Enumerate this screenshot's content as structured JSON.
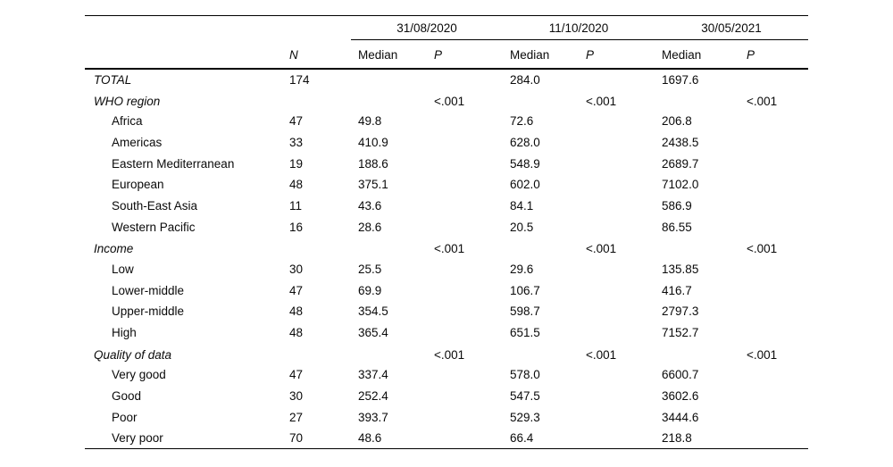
{
  "table": {
    "dates": [
      "31/08/2020",
      "11/10/2020",
      "30/05/2021"
    ],
    "headers": {
      "n": "N",
      "median": "Median",
      "p": "P"
    },
    "rows": [
      {
        "label": "TOTAL",
        "type": "section",
        "cells": [
          "174",
          "",
          "",
          "284.0",
          "",
          "1697.6",
          ""
        ]
      },
      {
        "label": "WHO region",
        "type": "section",
        "cells": [
          "",
          "",
          "<.001",
          "",
          "<.001",
          "",
          "<.001"
        ]
      },
      {
        "label": "Africa",
        "type": "item",
        "cells": [
          "47",
          "49.8",
          "",
          "72.6",
          "",
          "206.8",
          ""
        ]
      },
      {
        "label": "Americas",
        "type": "item",
        "cells": [
          "33",
          "410.9",
          "",
          "628.0",
          "",
          "2438.5",
          ""
        ]
      },
      {
        "label": "Eastern Mediterranean",
        "type": "item",
        "cells": [
          "19",
          "188.6",
          "",
          "548.9",
          "",
          "2689.7",
          ""
        ]
      },
      {
        "label": "European",
        "type": "item",
        "cells": [
          "48",
          "375.1",
          "",
          "602.0",
          "",
          "7102.0",
          ""
        ]
      },
      {
        "label": "South-East Asia",
        "type": "item",
        "cells": [
          "11",
          "43.6",
          "",
          "84.1",
          "",
          "586.9",
          ""
        ]
      },
      {
        "label": "Western Pacific",
        "type": "item",
        "cells": [
          "16",
          "28.6",
          "",
          "20.5",
          "",
          "86.55",
          ""
        ]
      },
      {
        "label": "Income",
        "type": "section",
        "cells": [
          "",
          "",
          "<.001",
          "",
          "<.001",
          "",
          "<.001"
        ]
      },
      {
        "label": "Low",
        "type": "item",
        "cells": [
          "30",
          "25.5",
          "",
          "29.6",
          "",
          "135.85",
          ""
        ]
      },
      {
        "label": "Lower-middle",
        "type": "item",
        "cells": [
          "47",
          "69.9",
          "",
          "106.7",
          "",
          "416.7",
          ""
        ]
      },
      {
        "label": "Upper-middle",
        "type": "item",
        "cells": [
          "48",
          "354.5",
          "",
          "598.7",
          "",
          "2797.3",
          ""
        ]
      },
      {
        "label": "High",
        "type": "item",
        "cells": [
          "48",
          "365.4",
          "",
          "651.5",
          "",
          "7152.7",
          ""
        ]
      },
      {
        "label": "Quality of data",
        "type": "section",
        "cells": [
          "",
          "",
          "<.001",
          "",
          "<.001",
          "",
          "<.001"
        ]
      },
      {
        "label": "Very good",
        "type": "item",
        "cells": [
          "47",
          "337.4",
          "",
          "578.0",
          "",
          "6600.7",
          ""
        ]
      },
      {
        "label": "Good",
        "type": "item",
        "cells": [
          "30",
          "252.4",
          "",
          "547.5",
          "",
          "3602.6",
          ""
        ]
      },
      {
        "label": "Poor",
        "type": "item",
        "cells": [
          "27",
          "393.7",
          "",
          "529.3",
          "",
          "3444.6",
          ""
        ]
      },
      {
        "label": "Very poor",
        "type": "item",
        "cells": [
          "70",
          "48.6",
          "",
          "66.4",
          "",
          "218.8",
          ""
        ]
      }
    ]
  }
}
